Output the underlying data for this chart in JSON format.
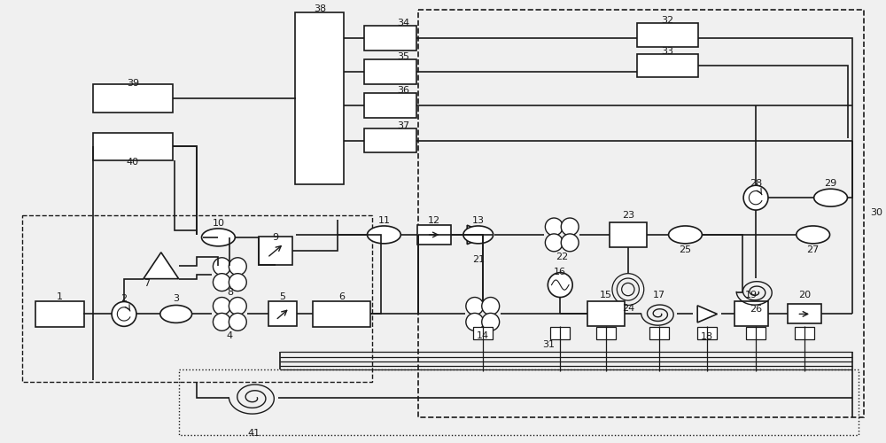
{
  "bg_color": "#f0f0f0",
  "line_color": "#1a1a1a",
  "figsize": [
    10,
    5
  ],
  "dpi": 100
}
